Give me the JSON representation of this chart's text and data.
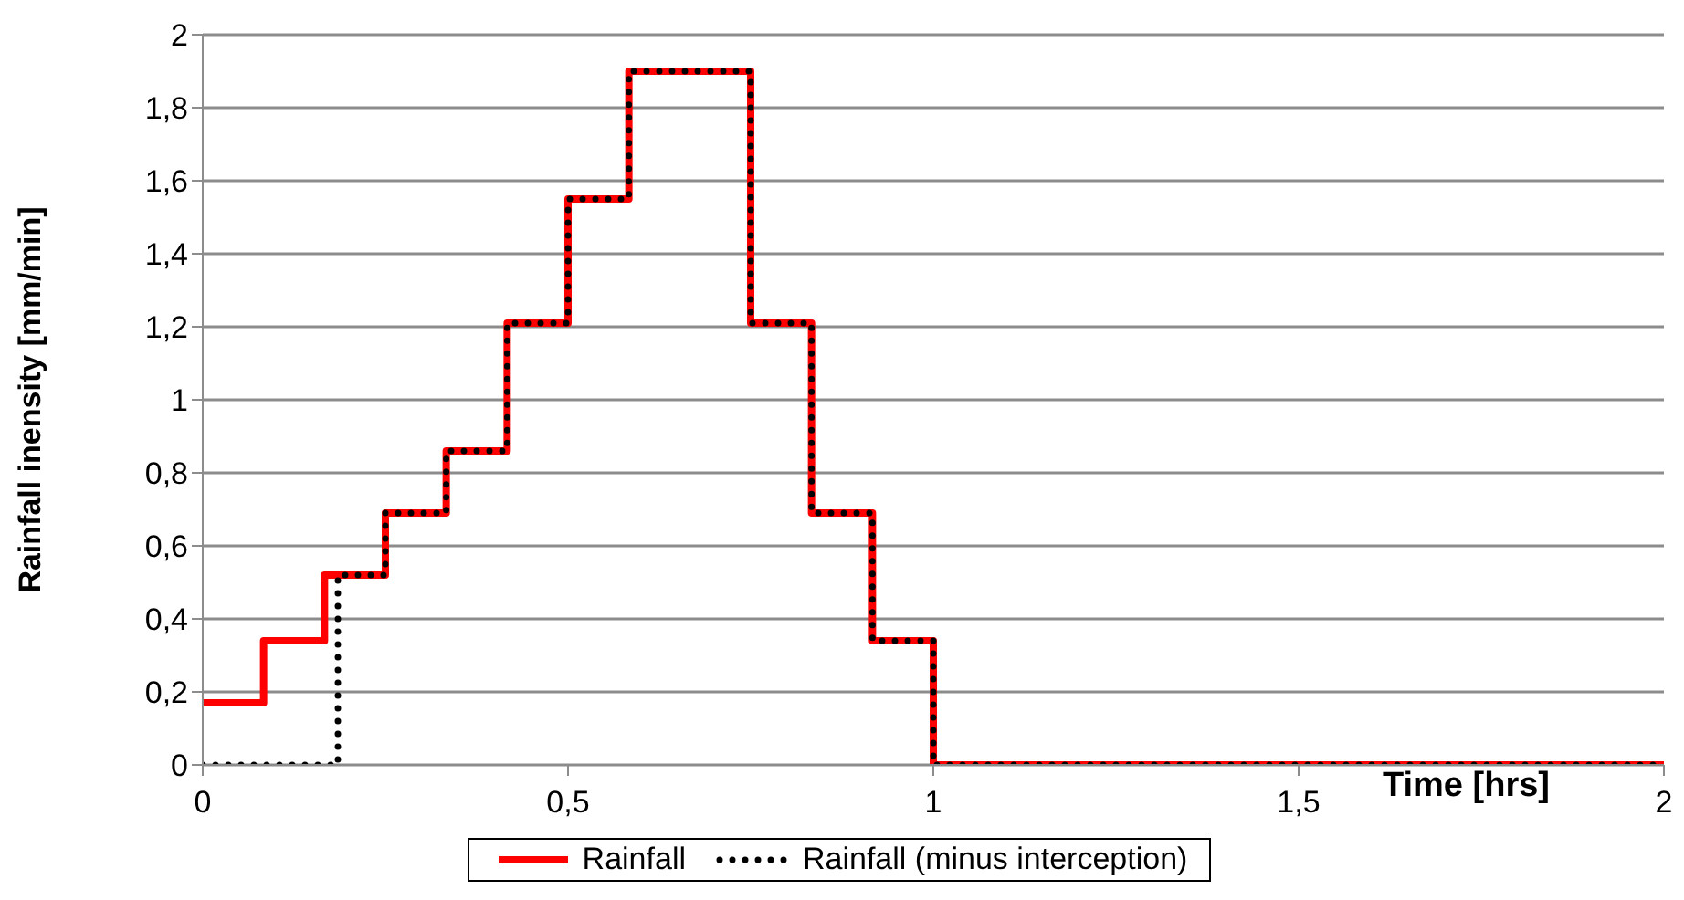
{
  "chart_data": {
    "type": "step",
    "xlabel": "Time [hrs]",
    "ylabel": "Rainfall inensity [mm/min]",
    "xlim": [
      0,
      2
    ],
    "xticks": [
      0,
      {
        "value": 0.5,
        "label": "0,5"
      },
      1,
      {
        "value": 1.5,
        "label": "1,5"
      },
      2
    ],
    "ylim": [
      0,
      2
    ],
    "yticks": [
      0,
      {
        "value": 0.2,
        "label": "0,2"
      },
      {
        "value": 0.4,
        "label": "0,4"
      },
      {
        "value": 0.6,
        "label": "0,6"
      },
      {
        "value": 0.8,
        "label": "0,8"
      },
      1,
      {
        "value": 1.2,
        "label": "1,2"
      },
      {
        "value": 1.4,
        "label": "1,4"
      },
      {
        "value": 1.6,
        "label": "1,6"
      },
      {
        "value": 1.8,
        "label": "1,8"
      },
      2
    ],
    "grid": "y",
    "legend": "bottom",
    "marker": "none",
    "series": [
      {
        "name": "Rainfall",
        "color": "#ff0000",
        "line_style": "solid",
        "x": [
          0,
          0.0833,
          0.1667,
          0.25,
          0.3333,
          0.4167,
          0.5,
          0.5833,
          0.75,
          0.8333,
          0.9167,
          1,
          2
        ],
        "values": [
          0.17,
          0.34,
          0.52,
          0.69,
          0.86,
          1.21,
          1.55,
          1.9,
          1.21,
          0.69,
          0.34,
          0,
          0
        ]
      },
      {
        "name": "Rainfall (minus interception)",
        "color": "#000000",
        "line_style": "dotted",
        "x": [
          0,
          0.185,
          0.25,
          0.3333,
          0.4167,
          0.5,
          0.5833,
          0.75,
          0.8333,
          0.9167,
          1,
          2
        ],
        "values": [
          0,
          0.52,
          0.69,
          0.86,
          1.21,
          1.55,
          1.9,
          1.21,
          0.69,
          0.34,
          0,
          0
        ]
      }
    ]
  }
}
